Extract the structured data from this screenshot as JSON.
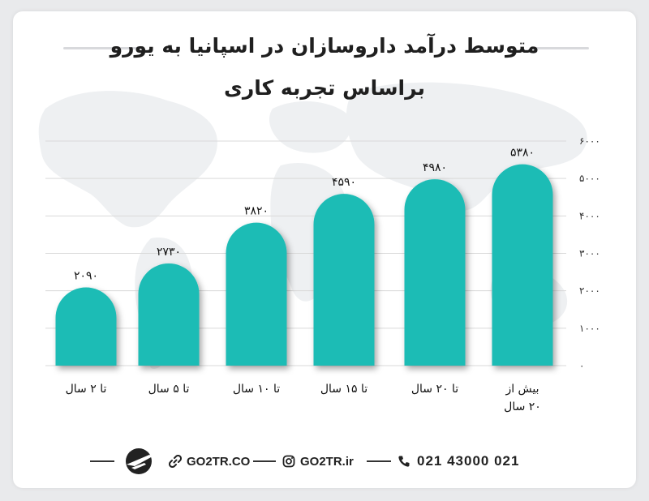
{
  "title": {
    "line1": "متوسط درآمد داروسازان در اسپانیا به یورو",
    "line2": "براساس تجربه کاری"
  },
  "colors": {
    "bar": "#1dbcb5",
    "grid": "#d9d9d9",
    "text": "#1f1f1f",
    "map": "#eeeff1"
  },
  "chart_data": {
    "type": "bar",
    "categories": [
      "تا ۲ سال",
      "تا ۵ سال",
      "تا ۱۰ سال",
      "تا ۱۵ سال",
      "تا ۲۰ سال",
      [
        "بیش از",
        "۲۰ سال"
      ]
    ],
    "values": [
      2090,
      2730,
      3820,
      4590,
      4980,
      5380
    ],
    "value_labels": [
      "۲۰۹۰",
      "۲۷۳۰",
      "۳۸۲۰",
      "۴۵۹۰",
      "۴۹۸۰",
      "۵۳۸۰"
    ],
    "ylim": [
      0,
      6000
    ],
    "yticks": [
      0,
      1000,
      2000,
      3000,
      4000,
      5000,
      6000
    ],
    "ytick_labels": [
      "۰",
      "۱۰۰۰",
      "۲۰۰۰",
      "۳۰۰۰",
      "۴۰۰۰",
      "۵۰۰۰",
      "۶۰۰۰"
    ],
    "grid": true,
    "y_axis_side": "right"
  },
  "footer": {
    "website": "GO2TR.CO",
    "instagram": "GO2TR.ir",
    "phone": "021 43000 021",
    "icons": [
      "plane-logo-icon",
      "link-icon",
      "instagram-icon",
      "phone-icon"
    ]
  }
}
